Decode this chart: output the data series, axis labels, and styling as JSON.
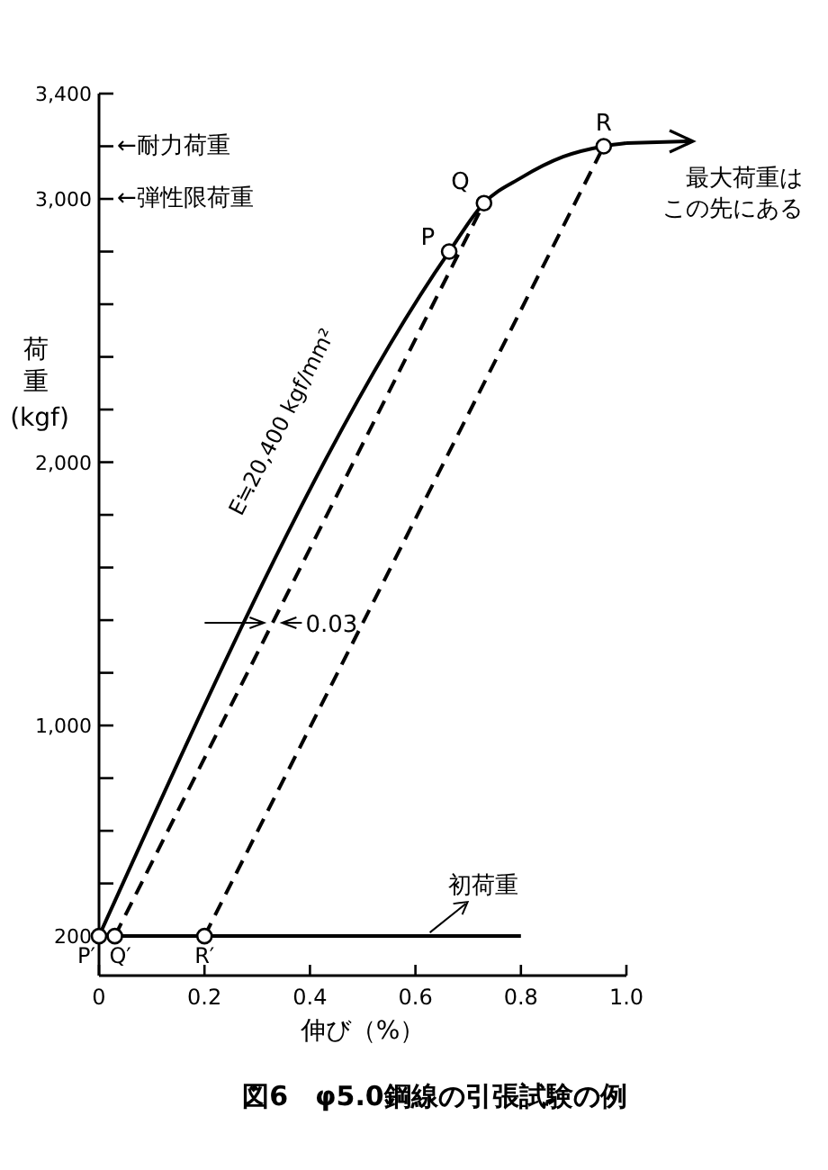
{
  "chart_data": {
    "type": "line",
    "title": "図6　φ5.0鋼線の引張試験の例",
    "xlabel": "伸び（%）",
    "ylabel": "荷重 (kgf)",
    "xlim": [
      0,
      1.0
    ],
    "ylim": [
      50,
      3400
    ],
    "xticks": [
      {
        "value": 0,
        "label": "0"
      },
      0.2,
      0.4,
      0.6,
      0.8,
      {
        "value": 1.0,
        "label": "1.0"
      }
    ],
    "yticks": [
      200,
      {
        "value": 400,
        "label": null
      },
      {
        "value": 600,
        "label": null
      },
      {
        "value": 800,
        "label": null
      },
      {
        "value": 1000,
        "label": "1,000"
      },
      {
        "value": 1200,
        "label": null
      },
      {
        "value": 1400,
        "label": null
      },
      {
        "value": 1600,
        "label": null
      },
      {
        "value": 1800,
        "label": null
      },
      {
        "value": 2000,
        "label": "2,000"
      },
      {
        "value": 2200,
        "label": null
      },
      {
        "value": 2400,
        "label": null
      },
      {
        "value": 2600,
        "label": null
      },
      {
        "value": 2800,
        "label": null
      },
      {
        "value": 3000,
        "label": "3,000"
      },
      {
        "value": 3200,
        "label": null
      },
      {
        "value": 3400,
        "label": "3,400"
      }
    ],
    "grid": false,
    "series": [
      {
        "color": "#000000",
        "line_style": "solid",
        "x": [
          0,
          0.8
        ],
        "values": [
          200,
          200
        ]
      },
      {
        "color": "#000000",
        "line_style": "solid",
        "x": [
          0,
          0.664,
          0.73,
          0.8,
          0.88,
          0.957,
          1.0
        ],
        "values": [
          200,
          2800,
          2984,
          3080,
          3160,
          3200,
          3212
        ]
      },
      {
        "color": "#000000",
        "line_style": "dashed",
        "x": [
          0.03,
          0.73
        ],
        "values": [
          200,
          2984
        ]
      },
      {
        "color": "#000000",
        "line_style": "dashed",
        "x": [
          0.2,
          0.957
        ],
        "values": [
          200,
          3200
        ]
      },
      {
        "type": "scatter",
        "color": "#000000",
        "marker": "circle",
        "x": [
          0,
          0.03,
          0.2,
          0.664,
          0.73,
          0.957
        ],
        "values": [
          200,
          200,
          200,
          2800,
          2984,
          3200
        ]
      }
    ],
    "annotations": [
      {
        "text": "P",
        "x": 0.664,
        "y": 2800
      },
      {
        "text": "Q",
        "x": 0.73,
        "y": 2984
      },
      {
        "text": "R",
        "x": 0.957,
        "y": 3200
      },
      {
        "text": "P′",
        "x": 0,
        "y": 200
      },
      {
        "text": "Q′",
        "x": 0.03,
        "y": 200
      },
      {
        "text": "R′",
        "x": 0.2,
        "y": 200
      },
      "←耐力荷重",
      "←弾性限荷重",
      "最大荷重は",
      "E≒20,400  kgf/mm²",
      {
        "text": "0.03",
        "x": 0.33,
        "y": 1390
      },
      {
        "text": "初荷重",
        "x": 0.6,
        "y": 200
      },
      "この先にある"
    ]
  }
}
